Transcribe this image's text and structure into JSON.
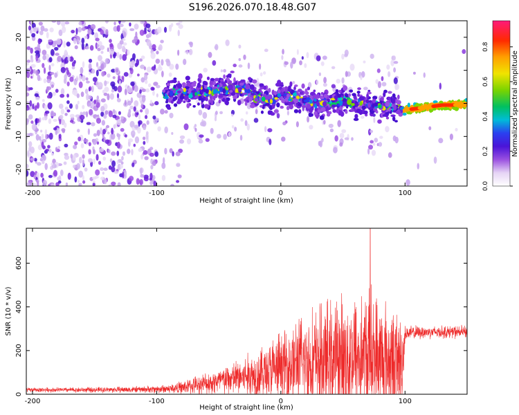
{
  "title": "S196.2026.070.18.48.G07",
  "colors": {
    "snr_line": "#ee2a2a",
    "background": "#ffffff",
    "axis": "#000000"
  },
  "chart_data": [
    {
      "type": "heatmap",
      "xlabel": "Height of straight line (km)",
      "ylabel": "Frequency (Hz)",
      "xlim": [
        -205,
        150
      ],
      "ylim": [
        -25,
        25
      ],
      "xticks": [
        -200,
        -100,
        0,
        100
      ],
      "xtick_labels": [
        "-200",
        "-100",
        "0",
        "100"
      ],
      "yticks": [
        -20,
        -10,
        0,
        10,
        20
      ],
      "ytick_labels": [
        "-20",
        "-10",
        "0",
        "10",
        "20"
      ],
      "colorbar": {
        "label": "Normalized spectral amplitude",
        "range": [
          0,
          0.95
        ],
        "ticks": [
          0.0,
          0.2,
          0.4,
          0.6,
          0.8
        ],
        "tick_labels": [
          "0.0",
          "0.2",
          "0.4",
          "0.6",
          "0.8"
        ]
      },
      "ridge": {
        "x": [
          -110,
          -90,
          -70,
          -55,
          -40,
          -35,
          -30,
          -25,
          -20,
          -15,
          -10,
          -5,
          0,
          10,
          20,
          30,
          40,
          50,
          60,
          70,
          80,
          90,
          95,
          100,
          110,
          120,
          130,
          140,
          150
        ],
        "y": [
          2,
          3,
          3.5,
          3.5,
          5,
          4,
          4.5,
          3.5,
          2,
          1.5,
          1,
          0.5,
          3,
          2,
          1,
          0,
          0,
          1,
          0,
          0,
          -1,
          -1,
          -2,
          -2,
          -1.5,
          -1,
          -0.5,
          -0.5,
          -0.3
        ]
      },
      "notes": "Noisy low-amplitude speckle for heights below -100 km; coherent signal ridge near 0 Hz from about -90 km upward; strong narrow peak between 100 and 150 km."
    },
    {
      "type": "line",
      "xlabel": "Height of straight line (km)",
      "ylabel": "SNR (10 * v/v)",
      "xlim": [
        -205,
        150
      ],
      "ylim": [
        0,
        760
      ],
      "xticks": [
        -200,
        -100,
        0,
        100
      ],
      "xtick_labels": [
        "-200",
        "-100",
        "0",
        "100"
      ],
      "yticks": [
        0,
        200,
        400,
        600
      ],
      "ytick_labels": [
        "0",
        "200",
        "400",
        "600"
      ],
      "envelope": {
        "x": [
          -205,
          -150,
          -110,
          -90,
          -80,
          -60,
          -40,
          -20,
          0,
          10,
          20,
          40,
          60,
          70,
          80,
          90,
          98,
          100,
          120,
          150
        ],
        "baseline": [
          20,
          20,
          22,
          25,
          30,
          50,
          70,
          90,
          120,
          140,
          150,
          160,
          170,
          170,
          160,
          150,
          140,
          280,
          285,
          285
        ],
        "amplitude": [
          12,
          15,
          18,
          25,
          35,
          60,
          90,
          140,
          200,
          240,
          270,
          320,
          380,
          400,
          360,
          300,
          260,
          40,
          35,
          35
        ],
        "peak": {
          "x": 72,
          "y": 760
        }
      }
    }
  ]
}
